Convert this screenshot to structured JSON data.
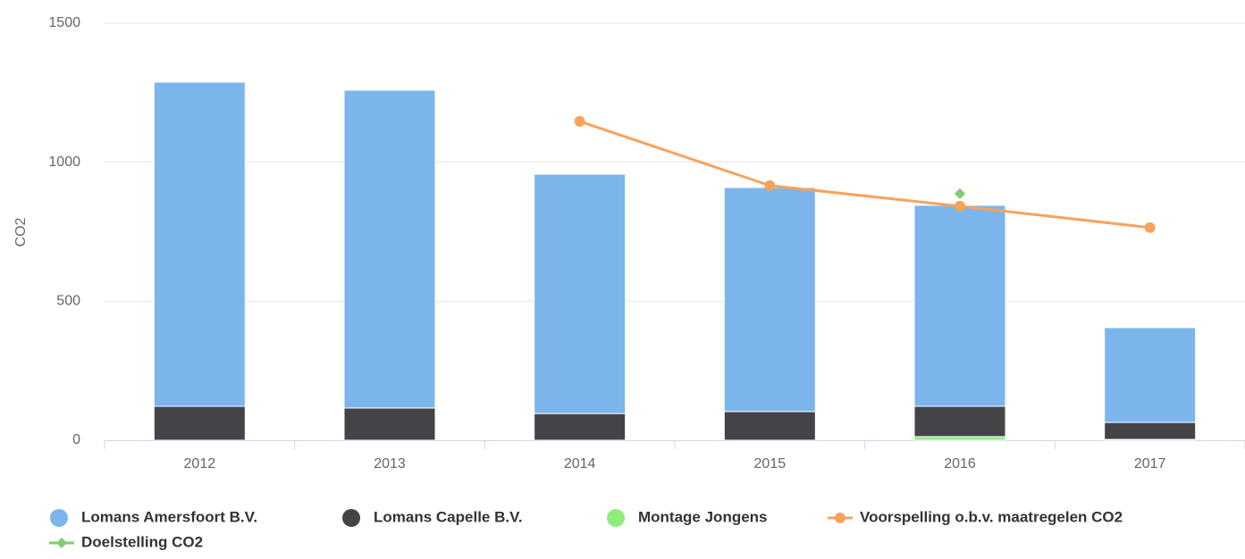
{
  "chart_data": {
    "type": "column",
    "stacking": "normal",
    "grid": true,
    "y_axis_label": "CO2",
    "categories": [
      "2012",
      "2013",
      "2014",
      "2015",
      "2016",
      "2017"
    ],
    "ylim": [
      0,
      1500
    ],
    "yticks": [
      0,
      500,
      1000,
      1500
    ],
    "series": [
      {
        "name": "Lomans Amersfoort B.V.",
        "type": "column",
        "color": "#7cb5ec",
        "values": [
          1166,
          1143,
          861,
          806,
          723,
          341
        ]
      },
      {
        "name": "Lomans Capelle B.V.",
        "type": "column",
        "color": "#434348",
        "values": [
          122,
          116,
          96,
          103,
          109,
          61
        ]
      },
      {
        "name": "Montage Jongens",
        "type": "column",
        "color": "#90ed7d",
        "values": [
          0,
          0,
          0,
          0,
          13,
          3
        ]
      },
      {
        "name": "Voorspelling o.b.v. maatregelen CO2",
        "type": "line",
        "color": "#f7a35c",
        "marker": "circle",
        "values": [
          null,
          null,
          1147,
          916,
          842,
          765
        ]
      },
      {
        "name": "Doelstelling CO2",
        "type": "line",
        "color": "#7fce70",
        "marker": "diamond",
        "values": [
          null,
          null,
          null,
          null,
          887,
          null
        ]
      }
    ]
  }
}
